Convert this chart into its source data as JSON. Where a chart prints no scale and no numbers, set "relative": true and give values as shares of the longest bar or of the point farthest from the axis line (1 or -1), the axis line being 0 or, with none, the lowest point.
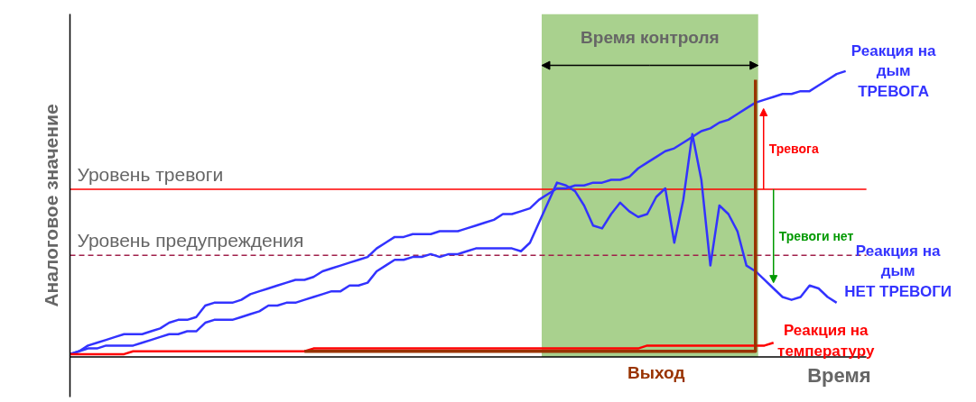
{
  "chart_data": {
    "type": "line",
    "relative": true,
    "xlabel": "Время",
    "ylabel": "Аналоговое значение",
    "categories": [
      null,
      null,
      null,
      null,
      null,
      null,
      null,
      null,
      null,
      null,
      null,
      null,
      null,
      null,
      null,
      null,
      null,
      null,
      null,
      null,
      null,
      null,
      null,
      null,
      null,
      null,
      null,
      null,
      null,
      null,
      null,
      null,
      null,
      null,
      null,
      null,
      null,
      null,
      null,
      null,
      null,
      null,
      null,
      null,
      null,
      null,
      null,
      null,
      null,
      null,
      null,
      null,
      null,
      null,
      null,
      null,
      null,
      null,
      null,
      null,
      null,
      null,
      null,
      null,
      null,
      null,
      null,
      null,
      null,
      null,
      null,
      null,
      null,
      null,
      null,
      null,
      null,
      null,
      null,
      null,
      null,
      null,
      null,
      null,
      null,
      null,
      null
    ],
    "series": [
      {
        "name": "Реакция на\nдым\nТРЕВОГА",
        "color": "#3333ff",
        "values": [
          0.01,
          0.02,
          0.04,
          0.05,
          0.06,
          0.07,
          0.08,
          0.08,
          0.08,
          0.09,
          0.1,
          0.12,
          0.13,
          0.13,
          0.14,
          0.18,
          0.19,
          0.19,
          0.19,
          0.2,
          0.22,
          0.23,
          0.24,
          0.25,
          0.26,
          0.27,
          0.27,
          0.28,
          0.3,
          0.31,
          0.32,
          0.33,
          0.34,
          0.35,
          0.38,
          0.4,
          0.42,
          0.42,
          0.43,
          0.43,
          0.43,
          0.44,
          0.44,
          0.44,
          0.45,
          0.46,
          0.47,
          0.48,
          0.5,
          0.5,
          0.51,
          0.52,
          0.55,
          0.57,
          0.59,
          0.59,
          0.6,
          0.6,
          0.61,
          0.61,
          0.62,
          0.62,
          0.63,
          0.66,
          0.68,
          0.7,
          0.72,
          0.73,
          0.75,
          0.77,
          0.79,
          0.8,
          0.82,
          0.83,
          0.85,
          0.87,
          0.89,
          0.9,
          0.91,
          0.92,
          0.92,
          0.93,
          0.93,
          0.95,
          0.97,
          0.99,
          1
        ]
      },
      {
        "name": "Реакция на\nдым\nНЕТ ТРЕВОГИ",
        "color": "#3333ff",
        "values": [
          0.01,
          0.02,
          0.03,
          0.03,
          0.04,
          0.04,
          0.04,
          0.04,
          0.05,
          0.06,
          0.07,
          0.08,
          0.08,
          0.09,
          0.09,
          0.12,
          0.13,
          0.13,
          0.13,
          0.14,
          0.15,
          0.16,
          0.18,
          0.18,
          0.19,
          0.19,
          0.2,
          0.21,
          0.22,
          0.23,
          0.23,
          0.25,
          0.25,
          0.26,
          0.3,
          0.32,
          0.34,
          0.34,
          0.35,
          0.35,
          0.36,
          0.35,
          0.36,
          0.36,
          0.37,
          0.38,
          0.38,
          0.38,
          0.38,
          0.38,
          0.37,
          0.4,
          0.47,
          0.54,
          0.61,
          0.6,
          0.58,
          0.53,
          0.46,
          0.45,
          0.5,
          0.54,
          0.51,
          0.49,
          0.5,
          0.56,
          0.59,
          0.4,
          0.55,
          0.78,
          0.62,
          0.32,
          0.53,
          0.5,
          0.44,
          0.32,
          0.3,
          0.27,
          0.24,
          0.21,
          0.2,
          0.21,
          0.25,
          0.24,
          0.21,
          0.19,
          null
        ]
      },
      {
        "name": "Реакция на\nтемпературу",
        "color": "#ff0000",
        "values": [
          0.01,
          0.01,
          0.01,
          0.01,
          0.01,
          0.01,
          0.01,
          0.02,
          0.02,
          0.02,
          0.02,
          0.02,
          0.02,
          0.02,
          0.02,
          0.02,
          0.02,
          0.02,
          0.02,
          0.02,
          0.02,
          0.02,
          0.02,
          0.02,
          0.02,
          0.02,
          0.02,
          0.03,
          0.03,
          0.03,
          0.03,
          0.03,
          0.03,
          0.03,
          0.03,
          0.03,
          0.03,
          0.03,
          0.03,
          0.03,
          0.03,
          0.03,
          0.03,
          0.03,
          0.03,
          0.03,
          0.03,
          0.03,
          0.03,
          0.03,
          0.03,
          0.03,
          0.03,
          0.03,
          0.03,
          0.03,
          0.03,
          0.03,
          0.03,
          0.03,
          0.03,
          0.03,
          0.03,
          0.03,
          0.04,
          0.04,
          0.04,
          0.04,
          0.04,
          0.04,
          0.04,
          0.04,
          0.04,
          0.04,
          0.04,
          0.04,
          0.04,
          0.04,
          0.05,
          null,
          null,
          null,
          null,
          null,
          null,
          null,
          null
        ]
      },
      {
        "name": "Выход",
        "type": "step",
        "color": "#993300",
        "values": [
          null,
          null,
          null,
          null,
          null,
          null,
          null,
          null,
          null,
          null,
          null,
          null,
          null,
          null,
          null,
          null,
          null,
          null,
          null,
          null,
          null,
          null,
          null,
          null,
          null,
          null,
          0.02,
          0.02,
          0.02,
          0.02,
          0.02,
          0.02,
          0.02,
          0.02,
          0.02,
          0.02,
          0.02,
          0.02,
          0.02,
          0.02,
          0.02,
          0.02,
          0.02,
          0.02,
          0.02,
          0.02,
          0.02,
          0.02,
          0.02,
          0.02,
          0.02,
          0.02,
          0.02,
          0.02,
          0.02,
          0.02,
          0.02,
          0.02,
          0.02,
          0.02,
          0.02,
          0.02,
          0.02,
          0.02,
          0.02,
          0.02,
          0.02,
          0.02,
          0.02,
          0.02,
          0.02,
          0.02,
          0.02,
          0.02,
          0.02,
          0.02,
          0.97,
          null,
          null,
          null,
          null,
          null,
          null,
          null,
          null,
          null,
          null
        ]
      }
    ],
    "ref_lines": [
      {
        "axis": "y",
        "value": 0.587,
        "label": "Уровень тревоги",
        "color": "#ff0000",
        "line_style": "solid"
      },
      {
        "axis": "y",
        "value": 0.356,
        "label": "Уровень предупреждения",
        "color": "#a0204a",
        "line_style": "dashed"
      }
    ],
    "annotations": [
      "Время контроля",
      "Тревога",
      "Тревоги нет"
    ]
  }
}
